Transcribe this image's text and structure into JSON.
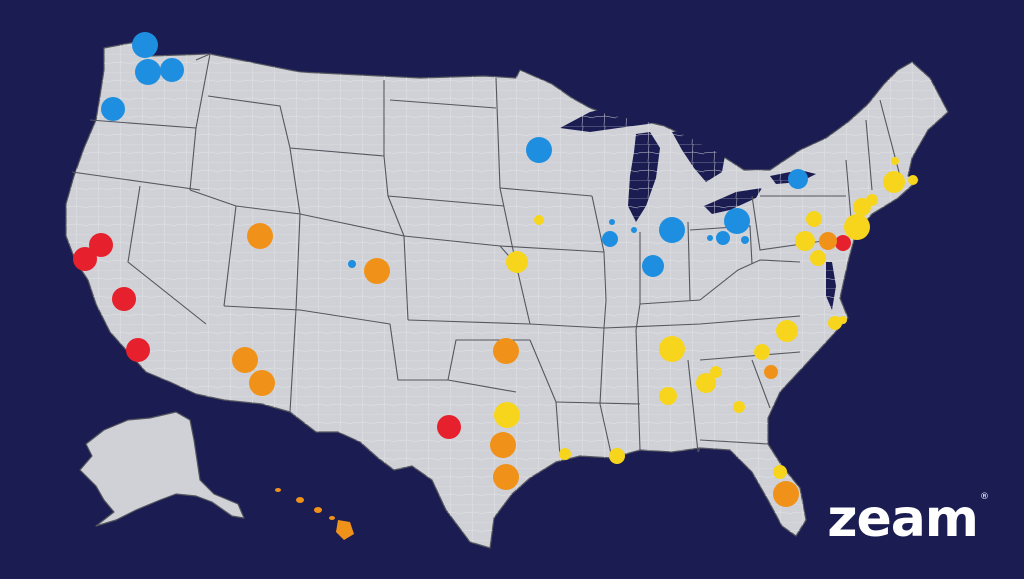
{
  "brand": {
    "logo_text": "zeam",
    "trademark": "®"
  },
  "map": {
    "background_color": "#1b1c52",
    "land_color": "#cfd1d6",
    "border_color": "#55575f",
    "category_colors": {
      "blue": "#1e8fe0",
      "red": "#e6202c",
      "orange": "#f0921a",
      "yellow": "#f7d51c"
    }
  }
}
